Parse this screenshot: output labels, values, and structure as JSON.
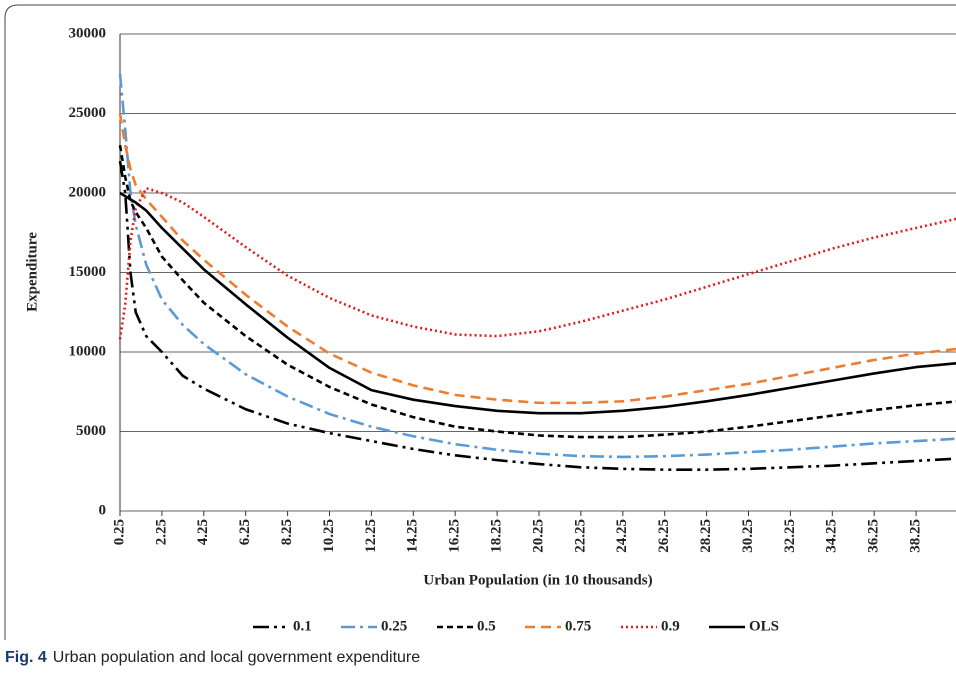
{
  "chart_data": {
    "type": "line",
    "y_label": "Expenditure",
    "x_label": "Urban Population (in 10 thousands)",
    "caption_label": "Fig. 4",
    "caption": "Urban population and local government expenditure",
    "x": [
      0.25,
      0.5,
      0.75,
      1,
      1.5,
      2.25,
      3.25,
      4.25,
      6.25,
      8.25,
      10.25,
      12.25,
      14.25,
      16.25,
      18.25,
      20.25,
      22.25,
      24.25,
      26.25,
      28.25,
      30.25,
      32.25,
      34.25,
      36.25,
      38.25,
      40.25
    ],
    "xlim": [
      0.25,
      40.25
    ],
    "xticks": [
      0.25,
      2.25,
      4.25,
      6.25,
      8.25,
      10.25,
      12.25,
      14.25,
      16.25,
      18.25,
      20.25,
      22.25,
      24.25,
      26.25,
      28.25,
      30.25,
      32.25,
      34.25,
      36.25,
      38.25
    ],
    "ylim": [
      0,
      30000
    ],
    "yticks": [
      0,
      5000,
      10000,
      15000,
      20000,
      25000,
      30000
    ],
    "grid": true,
    "legend": "bottom",
    "series": [
      {
        "name": "0.1",
        "color": "#000000",
        "dash": "16 5 3 5 3 5",
        "values": [
          22000,
          20000,
          15000,
          12500,
          11000,
          10000,
          8500,
          7700,
          6400,
          5500,
          4900,
          4400,
          3900,
          3500,
          3200,
          2950,
          2750,
          2650,
          2600,
          2600,
          2650,
          2750,
          2850,
          3000,
          3150,
          3300
        ]
      },
      {
        "name": "0.25",
        "color": "#5b9bd5",
        "dash": "14 5 3 5",
        "values": [
          27500,
          24000,
          20000,
          18000,
          15500,
          13300,
          11700,
          10500,
          8600,
          7200,
          6100,
          5300,
          4700,
          4200,
          3850,
          3600,
          3450,
          3400,
          3450,
          3550,
          3700,
          3850,
          4050,
          4250,
          4400,
          4550
        ]
      },
      {
        "name": "0.5",
        "color": "#000000",
        "dash": "6 4",
        "values": [
          23000,
          21000,
          19500,
          18800,
          17800,
          16000,
          14500,
          13100,
          11000,
          9200,
          7800,
          6700,
          5900,
          5300,
          5000,
          4750,
          4650,
          4650,
          4800,
          5000,
          5300,
          5650,
          6000,
          6350,
          6650,
          6900
        ]
      },
      {
        "name": "0.75",
        "color": "#ed7d31",
        "dash": "10 6",
        "values": [
          25000,
          23000,
          21500,
          20500,
          19600,
          18500,
          17000,
          15800,
          13600,
          11600,
          9900,
          8700,
          7900,
          7300,
          7000,
          6800,
          6800,
          6900,
          7200,
          7600,
          8000,
          8500,
          9000,
          9500,
          9900,
          10200
        ]
      },
      {
        "name": "0.9",
        "color": "#e31a1c",
        "dash": "2 3",
        "values": [
          10800,
          13000,
          17000,
          19000,
          20300,
          20000,
          19400,
          18500,
          16600,
          14800,
          13400,
          12300,
          11600,
          11100,
          11000,
          11300,
          11900,
          12600,
          13300,
          14100,
          14900,
          15700,
          16500,
          17200,
          17800,
          18400
        ]
      },
      {
        "name": "OLS",
        "color": "#000000",
        "dash": "none",
        "values": [
          20000,
          19800,
          19600,
          19400,
          18900,
          17800,
          16500,
          15200,
          13000,
          10900,
          9000,
          7600,
          7000,
          6600,
          6300,
          6150,
          6150,
          6300,
          6550,
          6900,
          7300,
          7750,
          8200,
          8650,
          9050,
          9300
        ]
      }
    ]
  }
}
